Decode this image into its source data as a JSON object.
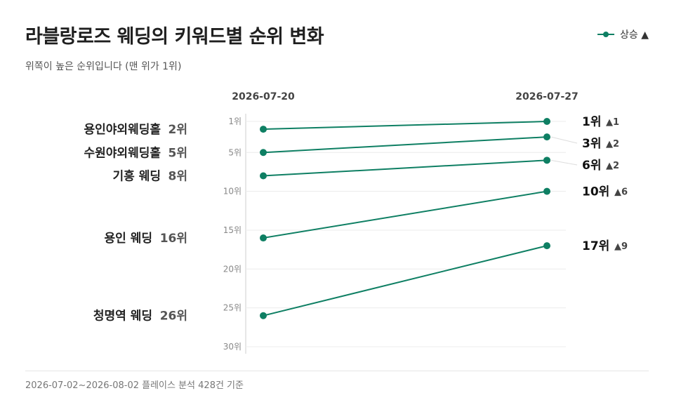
{
  "header": {
    "title": "라블랑로즈 웨딩의 키워드별 순위 변화",
    "subtitle": "위쪽이 높은 순위입니다 (맨 위가 1위)"
  },
  "legend": {
    "label": "상승 ▲",
    "color": "#0e7f63"
  },
  "footer": {
    "text": "2026-07-02~2026-08-02 플레이스 분석 428건 기준"
  },
  "chart_data": {
    "type": "line",
    "x": [
      "2026-07-20",
      "2026-07-27"
    ],
    "y_axis": {
      "min": 1,
      "max": 30,
      "inverted": true,
      "ticks": [
        1,
        5,
        10,
        15,
        20,
        25,
        30
      ],
      "tick_suffix": "위"
    },
    "grid": true,
    "series": [
      {
        "name": "용인야외웨딩홀",
        "values": [
          2,
          1
        ],
        "start_label": "2위",
        "end_label": "1위",
        "change": "▲1"
      },
      {
        "name": "수원야외웨딩홀",
        "values": [
          5,
          3
        ],
        "start_label": "5위",
        "end_label": "3위",
        "change": "▲2"
      },
      {
        "name": "기흥 웨딩",
        "values": [
          8,
          6
        ],
        "start_label": "8위",
        "end_label": "6위",
        "change": "▲2"
      },
      {
        "name": "용인 웨딩",
        "values": [
          16,
          10
        ],
        "start_label": "16위",
        "end_label": "10위",
        "change": "▲6"
      },
      {
        "name": "청명역 웨딩",
        "values": [
          26,
          17
        ],
        "start_label": "26위",
        "end_label": "17위",
        "change": "▲9"
      }
    ]
  }
}
